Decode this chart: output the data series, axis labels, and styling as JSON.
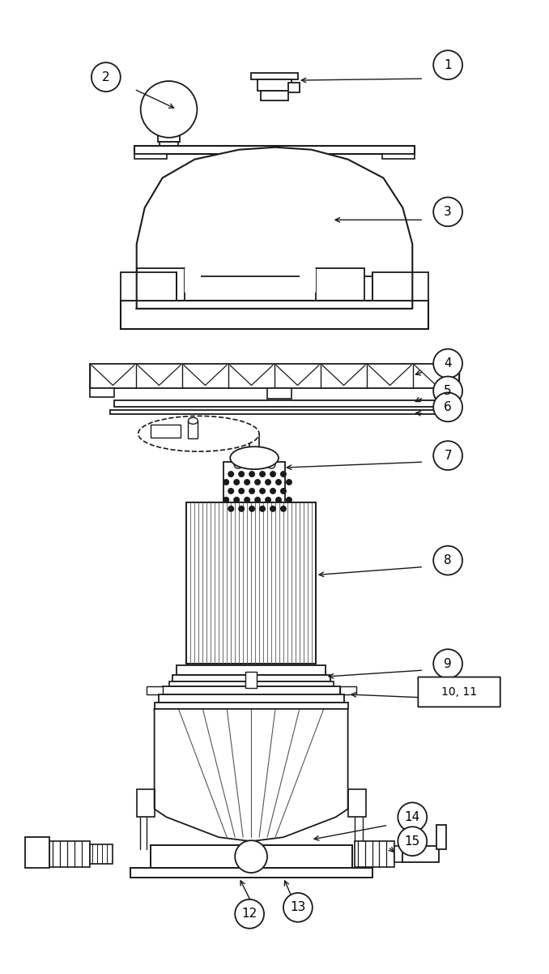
{
  "fig_width": 6.78,
  "fig_height": 12.02,
  "bg_color": "#ffffff",
  "line_color": "#1a1a1a",
  "lw": 1.3
}
